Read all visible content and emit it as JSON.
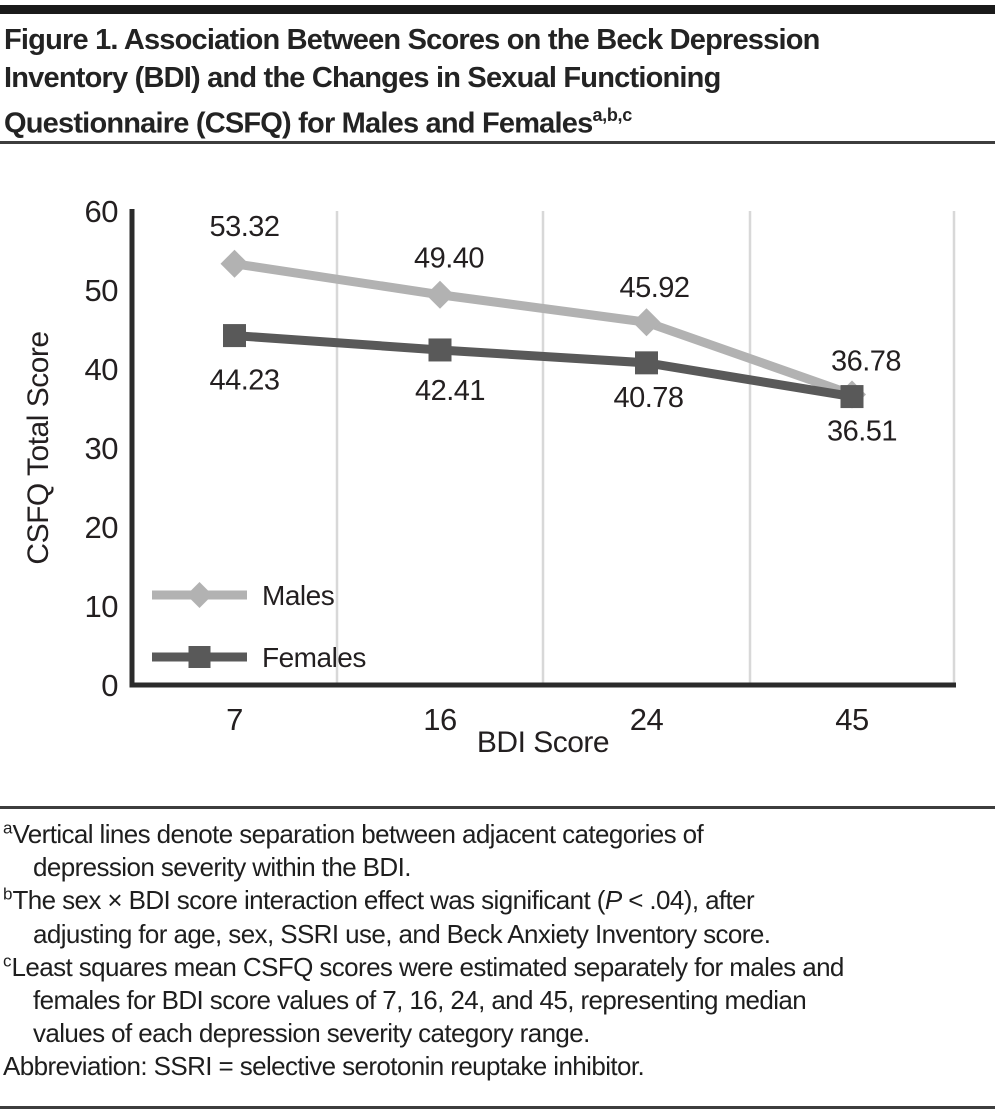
{
  "title": {
    "lines": [
      "Figure 1. Association Between Scores on the Beck Depression",
      "Inventory (BDI) and the Changes in Sexual Functioning",
      "Questionnaire (CSFQ) for Males and Females"
    ],
    "superscript": "a,b,c"
  },
  "chart_data": {
    "type": "line",
    "categories": [
      "7",
      "16",
      "24",
      "45"
    ],
    "series": [
      {
        "name": "Males",
        "values": [
          53.32,
          49.4,
          45.92,
          36.78
        ],
        "marker": "diamond",
        "color": "#b2b2b2"
      },
      {
        "name": "Females",
        "values": [
          44.23,
          42.41,
          40.78,
          36.51
        ],
        "marker": "square",
        "color": "#595959"
      }
    ],
    "xlabel": "BDI Score",
    "ylabel": "CSFQ Total Score",
    "ylim": [
      0,
      60
    ],
    "yticks": [
      0,
      10,
      20,
      30,
      40,
      50,
      60
    ],
    "grid": "vertical category separators",
    "legend_position": "inside lower-left",
    "colors": {
      "axis": "#2b2b2b",
      "grid": "#d8d8d8",
      "text": "#231f20"
    }
  },
  "footnotes": {
    "a": {
      "sup": "a",
      "line1": "Vertical lines denote separation between adjacent categories of",
      "line2": "depression severity within the BDI."
    },
    "b": {
      "sup": "b",
      "line1_pre": "The sex × BDI score interaction effect was significant (",
      "line1_italic": "P",
      "line1_post": " < .04), after",
      "line2": "adjusting for age, sex, SSRI use, and Beck Anxiety Inventory score."
    },
    "c": {
      "sup": "c",
      "line1": "Least squares mean CSFQ scores were estimated separately for males and",
      "line2": "females for BDI score values of 7, 16, 24, and 45, representing median",
      "line3": "values of each depression severity category range."
    },
    "abbreviation": "Abbreviation: SSRI = selective serotonin reuptake inhibitor."
  }
}
